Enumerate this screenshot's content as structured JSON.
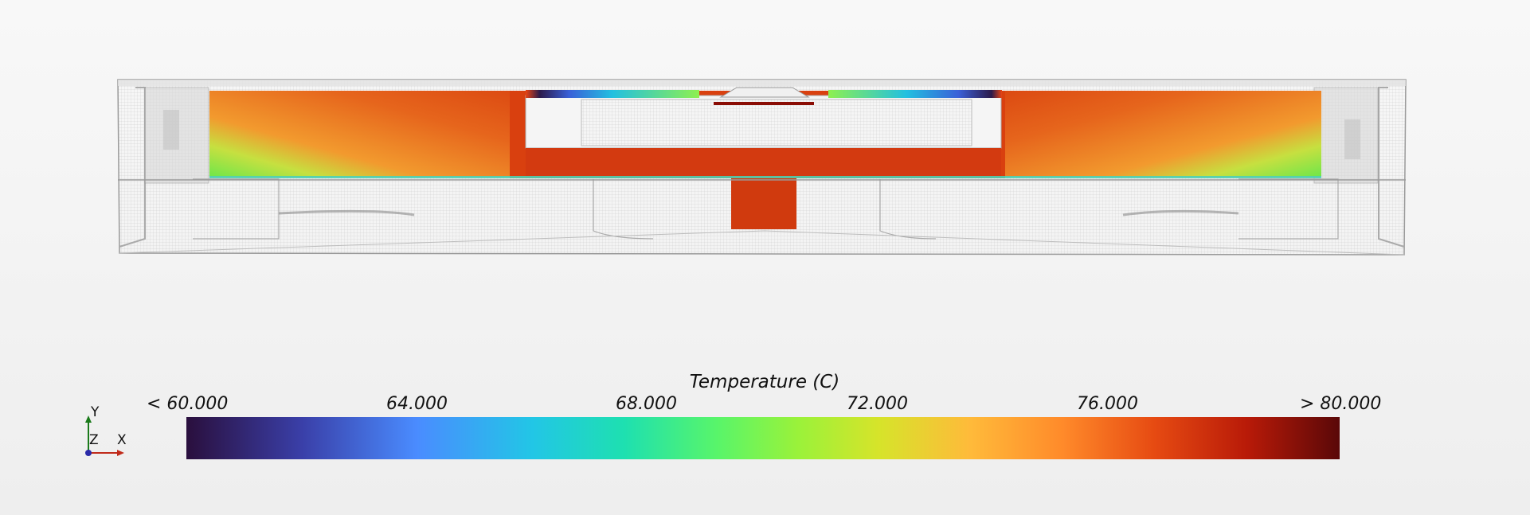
{
  "legend": {
    "title": "Temperature (C)",
    "ticks": [
      "< 60.000",
      "64.000",
      "68.000",
      "72.000",
      "76.000",
      "> 80.000"
    ],
    "min": 60,
    "max": 80,
    "colormap": [
      "#2a0f3d",
      "#3a3fa8",
      "#4a8cff",
      "#22c6e6",
      "#1ee0b0",
      "#58f56a",
      "#9af23a",
      "#d6e42a",
      "#ffba3a",
      "#ff8a2a",
      "#e64a12",
      "#b81a08",
      "#5a0808"
    ]
  },
  "triad": {
    "y": "Y",
    "z": "Z",
    "x": "X"
  },
  "colors": {
    "hot": "#d6360f",
    "warm": "#ea6a1f",
    "cool": "#8ee65a",
    "wire": "#b9b9b9"
  }
}
